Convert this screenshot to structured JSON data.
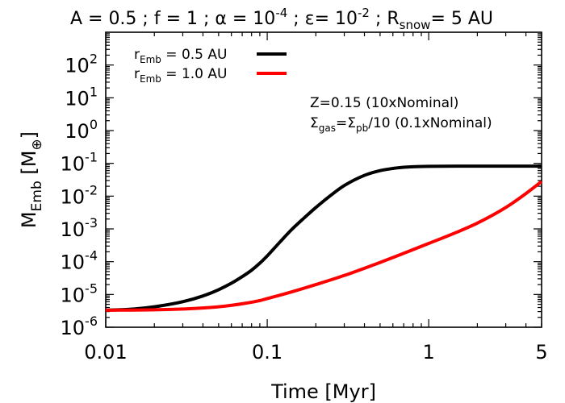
{
  "chart_data": {
    "type": "line",
    "title": {
      "a": "A = 0.5 ; f = 1 ; α = 10",
      "a_exp": "-4",
      "b": " ; ε= 10",
      "b_exp": "-2",
      "c": " ; R",
      "c_sub": "snow",
      "d": "=  5 AU"
    },
    "xlabel": "Time [Myr]",
    "ylabel": {
      "main": "M",
      "sub": "Emb",
      "unit": " [M",
      "unit_sub": "⊕",
      "close": "]"
    },
    "xscale": "log",
    "yscale": "log",
    "xlim": [
      0.01,
      5
    ],
    "ylim": [
      1e-06,
      1000
    ],
    "xticks": [
      {
        "value": 0.01,
        "label": "0.01"
      },
      {
        "value": 0.1,
        "label": "0.1"
      },
      {
        "value": 1,
        "label": "1"
      },
      {
        "value": 5,
        "label": "5"
      }
    ],
    "yticks": [
      {
        "value": 1e-06,
        "base": "10",
        "exp": "-6"
      },
      {
        "value": 1e-05,
        "base": "10",
        "exp": "-5"
      },
      {
        "value": 0.0001,
        "base": "10",
        "exp": "-4"
      },
      {
        "value": 0.001,
        "base": "10",
        "exp": "-3"
      },
      {
        "value": 0.01,
        "base": "10",
        "exp": "-2"
      },
      {
        "value": 0.1,
        "base": "10",
        "exp": "-1"
      },
      {
        "value": 1,
        "base": "10",
        "exp": "0"
      },
      {
        "value": 10,
        "base": "10",
        "exp": "1"
      },
      {
        "value": 100,
        "base": "10",
        "exp": "2"
      }
    ],
    "legend": {
      "placement": "top-left",
      "entries": [
        {
          "main": "r",
          "sub": "Emb",
          "rest": " = 0.5 AU"
        },
        {
          "main": "r",
          "sub": "Emb",
          "rest": " = 1.0 AU"
        }
      ]
    },
    "annotation": {
      "line1": "Z=0.15 (10xNominal)",
      "line2": {
        "s1": "Σ",
        "sub1": "gas",
        "eq": "=Σ",
        "sub2": "pb",
        "rest": "/10 (0.1xNominal)"
      }
    },
    "series": [
      {
        "name": "r_Emb = 0.5 AU",
        "color": "#000000",
        "x": [
          0.01,
          0.015,
          0.02,
          0.03,
          0.04,
          0.05,
          0.06,
          0.07,
          0.08,
          0.09,
          0.1,
          0.12,
          0.14,
          0.17,
          0.2,
          0.25,
          0.3,
          0.4,
          0.5,
          0.6,
          0.7,
          0.8,
          1.0,
          1.5,
          2,
          3,
          4,
          5
        ],
        "y": [
          3.3e-06,
          3.6e-06,
          4.2e-06,
          6e-06,
          9e-06,
          1.4e-05,
          2.2e-05,
          3.5e-05,
          5.5e-05,
          9e-05,
          0.00015,
          0.0004,
          0.0009,
          0.0022,
          0.0045,
          0.011,
          0.021,
          0.043,
          0.06,
          0.07,
          0.076,
          0.079,
          0.081,
          0.082,
          0.082,
          0.082,
          0.082,
          0.082
        ]
      },
      {
        "name": "r_Emb = 1.0 AU",
        "color": "#ff0000",
        "x": [
          0.01,
          0.02,
          0.03,
          0.05,
          0.07,
          0.09,
          0.1,
          0.12,
          0.15,
          0.2,
          0.3,
          0.5,
          0.7,
          1.0,
          1.5,
          2,
          3,
          4,
          5
        ],
        "y": [
          3.3e-06,
          3.4e-06,
          3.6e-06,
          4.2e-06,
          5.2e-06,
          6.5e-06,
          7.5e-06,
          9.5e-06,
          1.3e-05,
          2e-05,
          3.8e-05,
          9.5e-05,
          0.00018,
          0.00036,
          0.0008,
          0.0015,
          0.0045,
          0.012,
          0.028
        ]
      }
    ]
  }
}
